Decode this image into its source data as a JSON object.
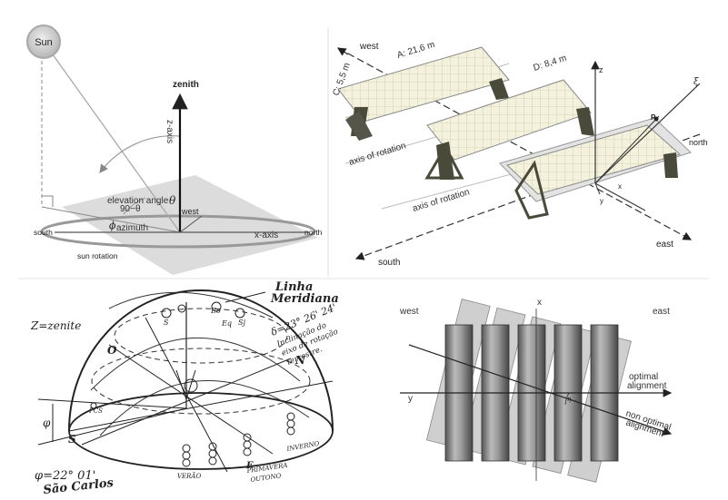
{
  "panel1": {
    "sun": "Sun",
    "zenith": "zenith",
    "z_axis": "z-axis",
    "theta": "θ",
    "elevation_angle": "elevation angle",
    "elevation_formula": "90−θ",
    "west": "west",
    "phi_azimuth_symbol": "ϕ",
    "phi_azimuth_sub": "azimuth",
    "south": "south",
    "x_axis": "x-axis",
    "north": "north",
    "sun_rotation": "sun rotation"
  },
  "panel2": {
    "west": "west",
    "dim_a": "A: 21,6 m",
    "dim_d": "D: 8,4 m",
    "dim_c": "C: 5,5 m",
    "axis_of_rotation_1": "axis of rotation",
    "axis_of_rotation_2": "axis of rotation",
    "z": "z",
    "xi": "ξ",
    "p": "P",
    "north": "north",
    "x": "x",
    "y": "y",
    "east": "east",
    "south": "south"
  },
  "panel3": {
    "z_zenite": "Z=zenite",
    "linha_meridiana_1": "Linha",
    "linha_meridiana_2": "Meridiana",
    "delta": "δ=23° 26' 24'",
    "inclinacao_1": "Inclinação do",
    "inclinacao_2": "eixo de rotação",
    "inclinacao_3": "terrestre.",
    "o": "O",
    "n": "N",
    "s": "S",
    "phi": "φ",
    "phi_value": "φ=22° 01'",
    "sao_carlos": "São Carlos",
    "inverno": "INVERNO",
    "verao": "VERÃO",
    "primavera": "PRIMAVERA",
    "outono": "OUTONO",
    "e": "E",
    "ss": "S",
    "sj": "Sj",
    "eq": "Eq",
    "eo": "Eo",
    "pcs": "PCS"
  },
  "panel4": {
    "west": "west",
    "east": "east",
    "x": "x",
    "y": "y",
    "eta": "η",
    "optimal_1": "optimal",
    "optimal_2": "alignment",
    "non_optimal_1": "non optimal",
    "non_optimal_2": "alignment"
  }
}
